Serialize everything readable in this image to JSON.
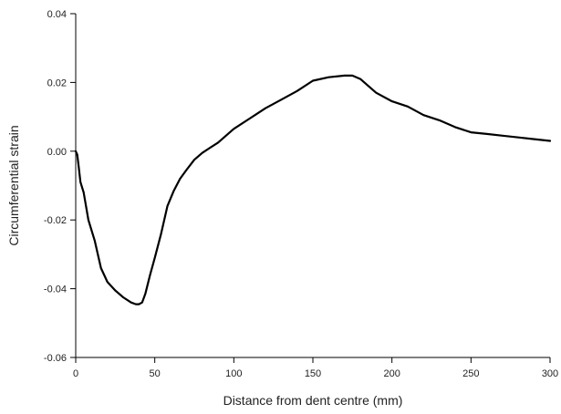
{
  "chart_data": {
    "type": "line",
    "title": "",
    "xlabel": "Distance from dent centre (mm)",
    "ylabel": "Circumferential strain",
    "xlim": [
      0,
      300
    ],
    "ylim": [
      -0.06,
      0.04
    ],
    "grid": false,
    "x_ticks": [
      0,
      50,
      100,
      150,
      200,
      250,
      300
    ],
    "x_tick_labels": [
      "0",
      "50",
      "100",
      "150",
      "200",
      "250",
      "300"
    ],
    "y_ticks": [
      -0.06,
      -0.04,
      -0.02,
      0.0,
      0.02,
      0.04
    ],
    "y_tick_labels": [
      "-0.06",
      "-0.04",
      "-0.02",
      "0.00",
      "0.02",
      "0.04"
    ],
    "series": [
      {
        "x": [
          0,
          1,
          2,
          3,
          5,
          8,
          12,
          16,
          20,
          25,
          30,
          35,
          38,
          40,
          42,
          44,
          47,
          50,
          54,
          58,
          62,
          66,
          70,
          75,
          80,
          85,
          90,
          95,
          100,
          110,
          120,
          130,
          140,
          150,
          160,
          170,
          175,
          180,
          185,
          190,
          200,
          210,
          220,
          230,
          240,
          250,
          260,
          270,
          280,
          290,
          300
        ],
        "y": [
          0.0,
          -0.001,
          -0.005,
          -0.009,
          -0.012,
          -0.02,
          -0.026,
          -0.034,
          -0.038,
          -0.0405,
          -0.0425,
          -0.044,
          -0.0445,
          -0.0445,
          -0.044,
          -0.0415,
          -0.036,
          -0.031,
          -0.024,
          -0.016,
          -0.0115,
          -0.008,
          -0.0055,
          -0.0025,
          -0.0005,
          0.001,
          0.0025,
          0.0045,
          0.0065,
          0.0095,
          0.0125,
          0.015,
          0.0175,
          0.0205,
          0.0215,
          0.022,
          0.022,
          0.021,
          0.019,
          0.017,
          0.0145,
          0.013,
          0.0105,
          0.009,
          0.007,
          0.0055,
          0.005,
          0.0045,
          0.004,
          0.0035,
          0.003
        ]
      }
    ]
  }
}
